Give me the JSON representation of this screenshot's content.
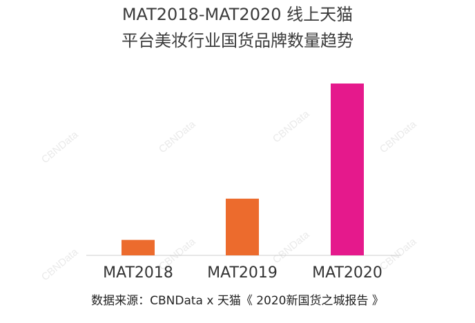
{
  "chart_data": {
    "type": "bar",
    "title": "MAT2018-MAT2020 线上天猫",
    "subtitle": "平台美妆行业国货品牌数量趋势",
    "categories": [
      "MAT2018",
      "MAT2019",
      "MAT2020"
    ],
    "values": [
      9,
      33,
      100
    ],
    "ylim": [
      0,
      100
    ],
    "colors": [
      "#ec6b2d",
      "#ec6b2d",
      "#e5198c"
    ],
    "axis_color": "#cccccc",
    "grid": false,
    "source": "数据来源：CBNData x 天猫《 2020新国货之城报告 》"
  },
  "watermark": "CBNData"
}
